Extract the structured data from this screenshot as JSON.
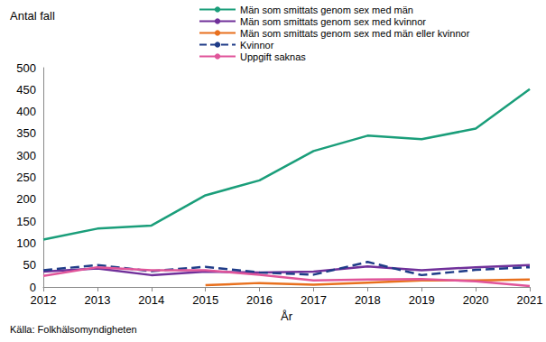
{
  "chart_data": {
    "type": "line",
    "ylabel": "Antal fall",
    "xlabel": "År",
    "source": "Källa: Folkhälsomyndigheten",
    "categories": [
      "2012",
      "2013",
      "2014",
      "2015",
      "2016",
      "2017",
      "2018",
      "2019",
      "2020",
      "2021"
    ],
    "series": [
      {
        "name": "Män som smittats genom sex med män",
        "color": "#1a9e7a",
        "line_style": "solid",
        "values": [
          108,
          133,
          140,
          209,
          243,
          310,
          345,
          337,
          361,
          451
        ]
      },
      {
        "name": "Män som smittats genom sex med kvinnor",
        "color": "#70309a",
        "line_style": "solid",
        "values": [
          35,
          42,
          27,
          35,
          33,
          35,
          47,
          38,
          45,
          50
        ]
      },
      {
        "name": "Män som smittats genom sex med män eller kvinnor",
        "color": "#e8701e",
        "line_style": "solid",
        "values": [
          null,
          null,
          null,
          4,
          9,
          5,
          10,
          15,
          15,
          17
        ]
      },
      {
        "name": "Kvinnor",
        "color": "#1f3c88",
        "line_style": "dashed",
        "values": [
          38,
          50,
          36,
          46,
          33,
          28,
          57,
          27,
          39,
          45
        ]
      },
      {
        "name": "Uppgift saknas",
        "color": "#e0559a",
        "line_style": "solid",
        "values": [
          25,
          45,
          38,
          38,
          28,
          15,
          17,
          18,
          13,
          2
        ]
      }
    ],
    "ylim": [
      0,
      500
    ],
    "yticks": [
      0,
      50,
      100,
      150,
      200,
      250,
      300,
      350,
      400,
      450,
      500
    ],
    "grid": false,
    "legend": "top",
    "marker": "none"
  }
}
